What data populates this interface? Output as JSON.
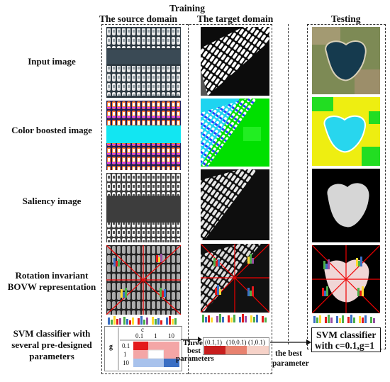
{
  "header": {
    "training": "Training",
    "source_domain": "The source domain",
    "target_domain": "The target domain",
    "testing": "Testing"
  },
  "rows": {
    "input": "Input image",
    "color": "Color boosted  image",
    "saliency": "Saliency  image",
    "bovw_line1": "Rotation invariant",
    "bovw_line2": "BOVW representation",
    "svm_line1": "SVM classifier with",
    "svm_line2": "several pre-designed",
    "svm_line3": "parameters"
  },
  "grid": {
    "c_label": "c",
    "g_label": "g",
    "c_values": [
      "0.1",
      "1",
      "10"
    ],
    "g_values": [
      "0.1",
      "1",
      "10"
    ]
  },
  "best": {
    "cells": [
      "(0.1,1)",
      "(10,0.1)",
      "(1,0.1)"
    ],
    "three_line1": "Three",
    "three_line2": "best",
    "three_line3": "parameters",
    "best_line1": "the best",
    "best_line2": "parameter"
  },
  "testing_svm": {
    "line1": "SVM classifier",
    "line2": "with c=0.1,g=1"
  },
  "colors": {
    "grid_red": "#e41a1c",
    "grid_pink": "#f4a6a6",
    "grid_blue": "#3b6fc4",
    "grid_lightblue": "#a8c2ec",
    "best_dark_red": "#c81e1e",
    "best_salmon": "#e8826f",
    "best_light": "#f6d2c8"
  }
}
